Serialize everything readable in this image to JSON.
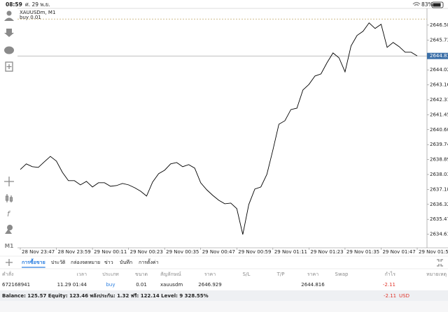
{
  "status_bar": {
    "time": "08:59",
    "date": "ศ. 29 พ.ย.",
    "battery": "83%"
  },
  "chart_data": {
    "type": "line",
    "title": "XAUUSDm, M1",
    "color": "#000000",
    "categories": [
      "28 Nov 23:47",
      "28 Nov 23:49",
      "28 Nov 23:51",
      "28 Nov 23:53",
      "28 Nov 23:55",
      "28 Nov 23:57",
      "28 Nov 23:59",
      "29 Nov 00:01",
      "29 Nov 00:03",
      "29 Nov 00:05",
      "29 Nov 00:07",
      "29 Nov 00:09",
      "29 Nov 00:11",
      "29 Nov 00:13",
      "29 Nov 00:15",
      "29 Nov 00:17",
      "29 Nov 00:19",
      "29 Nov 00:21",
      "29 Nov 00:23",
      "29 Nov 00:25",
      "29 Nov 00:27",
      "29 Nov 00:29",
      "29 Nov 00:31",
      "29 Nov 00:33",
      "29 Nov 00:35",
      "29 Nov 00:37",
      "29 Nov 00:39",
      "29 Nov 00:41",
      "29 Nov 00:43",
      "29 Nov 00:45",
      "29 Nov 00:47",
      "29 Nov 00:49",
      "29 Nov 00:51",
      "29 Nov 00:53",
      "29 Nov 00:55",
      "29 Nov 00:57",
      "29 Nov 00:59",
      "29 Nov 01:01",
      "29 Nov 01:03",
      "29 Nov 01:05",
      "29 Nov 01:07",
      "29 Nov 01:09",
      "29 Nov 01:11",
      "29 Nov 01:13",
      "29 Nov 01:15",
      "29 Nov 01:17",
      "29 Nov 01:19",
      "29 Nov 01:21",
      "29 Nov 01:23",
      "29 Nov 01:25",
      "29 Nov 01:27",
      "29 Nov 01:29",
      "29 Nov 01:31",
      "29 Nov 01:33",
      "29 Nov 01:35",
      "29 Nov 01:37",
      "29 Nov 01:39",
      "29 Nov 01:41",
      "29 Nov 01:43",
      "29 Nov 01:45",
      "29 Nov 01:47",
      "29 Nov 01:49",
      "29 Nov 01:51",
      "29 Nov 01:53",
      "29 Nov 01:55",
      "29 Nov 01:57",
      "29 Nov 01:59"
    ],
    "values": [
      2638.32,
      2638.64,
      2638.48,
      2638.44,
      2638.76,
      2639.07,
      2638.8,
      2638.16,
      2637.68,
      2637.68,
      2637.44,
      2637.64,
      2637.32,
      2637.56,
      2637.56,
      2637.36,
      2637.4,
      2637.52,
      2637.44,
      2637.28,
      2637.08,
      2636.8,
      2637.6,
      2638.08,
      2638.28,
      2638.64,
      2638.72,
      2638.48,
      2638.6,
      2638.4,
      2637.56,
      2637.16,
      2636.84,
      2636.56,
      2636.36,
      2636.4,
      2636.08,
      2634.6,
      2636.32,
      2637.2,
      2637.32,
      2638.04,
      2639.43,
      2640.91,
      2641.11,
      2641.75,
      2641.83,
      2642.87,
      2643.19,
      2643.67,
      2643.79,
      2644.43,
      2644.99,
      2644.71,
      2643.91,
      2645.39,
      2645.99,
      2646.23,
      2646.71,
      2646.39,
      2646.63,
      2645.31,
      2645.59,
      2645.35,
      2645.03,
      2645.03,
      2644.82
    ],
    "xticks": [
      "28 Nov 23:47",
      "28 Nov 23:59",
      "29 Nov 00:11",
      "29 Nov 00:23",
      "29 Nov 00:35",
      "29 Nov 00:47",
      "29 Nov 00:59",
      "29 Nov 01:11",
      "29 Nov 01:23",
      "29 Nov 01:35",
      "29 Nov 01:47",
      "29 Nov 01:59"
    ],
    "ylim": [
      2633.84,
      2647.54
    ],
    "yticks": [
      2646.585,
      {
        "value": 2645.73,
        "label": "2645.730"
      },
      {
        "value": 2644.02,
        "label": "2644.020"
      },
      2643.165,
      {
        "value": 2642.31,
        "label": "2642.310"
      },
      2641.455,
      {
        "value": 2640.6,
        "label": "2640.600"
      },
      2639.745,
      2638.89,
      2638.035,
      2637.18,
      2636.325,
      2635.47,
      2634.615
    ],
    "grid": false,
    "current_price": 2644.816,
    "order_line": {
      "label": "buy 0.01",
      "value": 2646.929,
      "color": "#c9b47e"
    }
  },
  "timeframe": "M1",
  "tabs": [
    "การซื้อขาย",
    "ประวัติ",
    "กล่องจดหมาย",
    "ข่าว",
    "บันทึก",
    "การตั้งค่า"
  ],
  "table": {
    "columns": [
      "คำสั่ง",
      "เวลา",
      "ประเภท",
      "ขนาด",
      "สัญลักษณ์",
      "ราคา",
      "S/L",
      "T/P",
      "ราคา",
      "Swap",
      "กำไร",
      "หมายเหตุ"
    ],
    "rows": [
      [
        "672168941",
        "11.29 01:44",
        "buy",
        "0.01",
        "xauusdm",
        "2646.929",
        null,
        null,
        "2644.816",
        null,
        "-2.11",
        null
      ]
    ]
  },
  "balance": {
    "text": "Balance: 125.57 Equity: 123.46 พลังประกัน: 1.32 ฟรี: 122.14 Level: 9 328.55%",
    "profit": "-2.11",
    "currency": "USD"
  }
}
